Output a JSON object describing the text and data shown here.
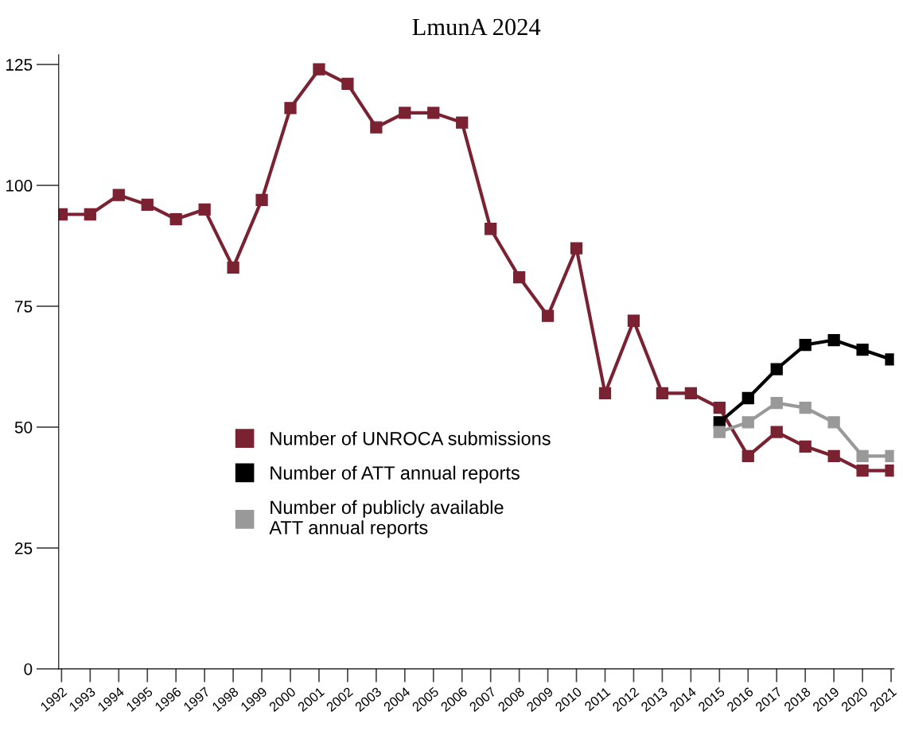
{
  "chart_data": {
    "type": "line",
    "title": "LmunA 2024",
    "categories": [
      "1992",
      "1993",
      "1994",
      "1995",
      "1996",
      "1997",
      "1998",
      "1999",
      "2000",
      "2001",
      "2002",
      "2003",
      "2004",
      "2005",
      "2006",
      "2007",
      "2008",
      "2009",
      "2010",
      "2011",
      "2012",
      "2013",
      "2014",
      "2015",
      "2016",
      "2017",
      "2018",
      "2019",
      "2020",
      "2021"
    ],
    "series": [
      {
        "name": "Number of UNROCA submissions",
        "color": "#7b2232",
        "values": [
          94,
          94,
          98,
          96,
          93,
          95,
          83,
          97,
          116,
          124,
          121,
          112,
          115,
          115,
          113,
          91,
          81,
          73,
          87,
          57,
          72,
          57,
          57,
          54,
          44,
          49,
          46,
          44,
          41,
          41
        ]
      },
      {
        "name": "Number of ATT annual reports",
        "color": "#000000",
        "values": [
          null,
          null,
          null,
          null,
          null,
          null,
          null,
          null,
          null,
          null,
          null,
          null,
          null,
          null,
          null,
          null,
          null,
          null,
          null,
          null,
          null,
          null,
          null,
          51,
          56,
          62,
          67,
          68,
          66,
          64
        ]
      },
      {
        "name": "Number of publicly available\nATT annual reports",
        "color": "#999999",
        "values": [
          null,
          null,
          null,
          null,
          null,
          null,
          null,
          null,
          null,
          null,
          null,
          null,
          null,
          null,
          null,
          null,
          null,
          null,
          null,
          null,
          null,
          null,
          null,
          49,
          51,
          55,
          54,
          51,
          44,
          44
        ]
      }
    ],
    "ylim": [
      0,
      127
    ],
    "yticks": [
      0,
      25,
      50,
      75,
      100,
      125
    ],
    "marker": "square",
    "line_style": "solid",
    "grid": false,
    "legend": "center"
  }
}
